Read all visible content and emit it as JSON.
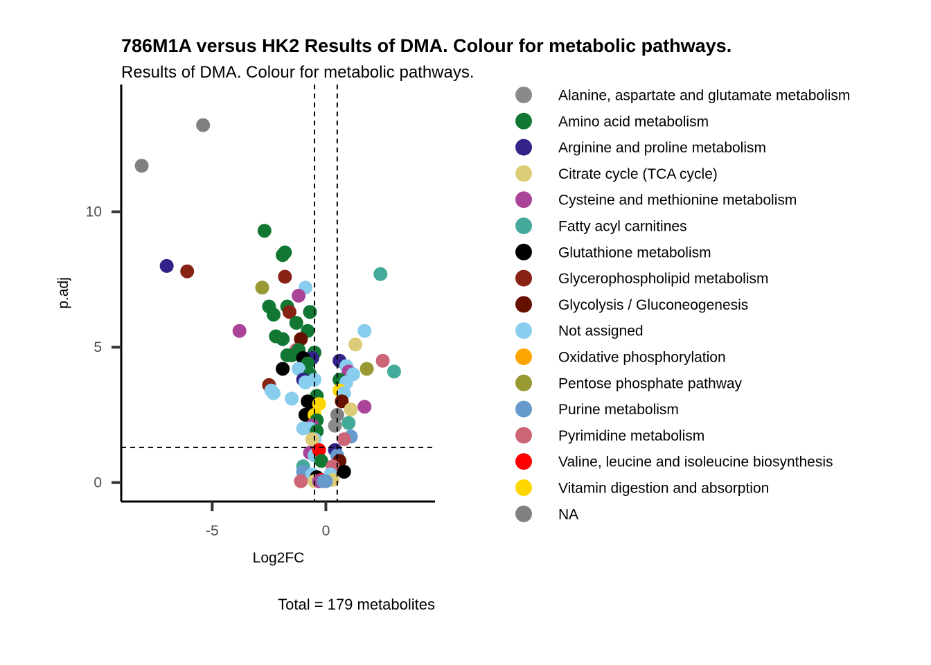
{
  "chart_data": {
    "type": "scatter",
    "title": "786M1A versus HK2 Results of DMA. Colour for metabolic pathways.",
    "subtitle": "Results of DMA. Colour for metabolic pathways.",
    "xlabel": "Log2FC",
    "ylabel": "p.adj",
    "caption": "Total = 179 metabolites",
    "xlim": [
      -9,
      4.8
    ],
    "ylim": [
      -0.7,
      14.7
    ],
    "x_ticks": [
      -5,
      0
    ],
    "x_tick_labels": [
      "-5",
      "0"
    ],
    "y_ticks": [
      0,
      5,
      10
    ],
    "y_tick_labels": [
      "0",
      "5",
      "10"
    ],
    "thresholds": {
      "vertical": [
        -0.5,
        0.5
      ],
      "horizontal": [
        1.3
      ]
    },
    "grid": false,
    "legend_position": "right",
    "legend": [
      {
        "name": "Alanine, aspartate and glutamate metabolism",
        "color": "#8a8a8a"
      },
      {
        "name": "Amino acid metabolism",
        "color": "#117733"
      },
      {
        "name": "Arginine and proline metabolism",
        "color": "#332288"
      },
      {
        "name": "Citrate cycle (TCA cycle)",
        "color": "#ddcc77"
      },
      {
        "name": "Cysteine and methionine metabolism",
        "color": "#aa4499"
      },
      {
        "name": "Fatty acyl carnitines",
        "color": "#44aa99"
      },
      {
        "name": "Glutathione metabolism",
        "color": "#000000"
      },
      {
        "name": "Glycerophospholipid metabolism",
        "color": "#882215"
      },
      {
        "name": "Glycolysis / Gluconeogenesis",
        "color": "#661100"
      },
      {
        "name": "Not assigned",
        "color": "#88ccee"
      },
      {
        "name": "Oxidative phosphorylation",
        "color": "#ffa500"
      },
      {
        "name": "Pentose phosphate pathway",
        "color": "#999933"
      },
      {
        "name": "Purine metabolism",
        "color": "#6699cc"
      },
      {
        "name": "Pyrimidine metabolism",
        "color": "#cc6677"
      },
      {
        "name": "Valine, leucine and isoleucine biosynthesis",
        "color": "#ff0000"
      },
      {
        "name": "Vitamin digestion and absorption",
        "color": "#ffd700"
      },
      {
        "name": "NA",
        "color": "#808080"
      }
    ],
    "points": [
      [
        -5.4,
        13.2,
        16
      ],
      [
        -8.1,
        11.7,
        16
      ],
      [
        -7.0,
        8.0,
        2
      ],
      [
        -6.1,
        7.8,
        7
      ],
      [
        -2.7,
        9.3,
        1
      ],
      [
        -1.8,
        8.5,
        1
      ],
      [
        -1.9,
        8.4,
        1
      ],
      [
        -1.8,
        7.6,
        7
      ],
      [
        -2.8,
        7.2,
        11
      ],
      [
        -0.9,
        7.2,
        9
      ],
      [
        -1.2,
        6.9,
        4
      ],
      [
        -2.5,
        6.5,
        1
      ],
      [
        -2.3,
        6.2,
        1
      ],
      [
        -1.7,
        6.5,
        1
      ],
      [
        -1.6,
        6.3,
        7
      ],
      [
        -0.7,
        6.3,
        1
      ],
      [
        -1.3,
        5.9,
        1
      ],
      [
        -0.8,
        5.6,
        1
      ],
      [
        -3.8,
        5.6,
        4
      ],
      [
        -2.2,
        5.4,
        1
      ],
      [
        -1.9,
        5.3,
        1
      ],
      [
        -1.1,
        5.3,
        8
      ],
      [
        -1.3,
        4.9,
        13
      ],
      [
        -1.2,
        4.9,
        1
      ],
      [
        -1.7,
        4.7,
        1
      ],
      [
        -1.5,
        4.7,
        1
      ],
      [
        -0.5,
        4.8,
        1
      ],
      [
        -0.6,
        4.6,
        2
      ],
      [
        -1.0,
        4.6,
        6
      ],
      [
        -0.8,
        4.4,
        1
      ],
      [
        -1.9,
        4.2,
        6
      ],
      [
        -1.2,
        4.2,
        9
      ],
      [
        -0.7,
        4.0,
        1
      ],
      [
        -1.0,
        3.8,
        2
      ],
      [
        -0.5,
        3.8,
        9
      ],
      [
        -0.9,
        3.7,
        9
      ],
      [
        -2.5,
        3.6,
        7
      ],
      [
        -2.4,
        3.4,
        9
      ],
      [
        -2.3,
        3.3,
        9
      ],
      [
        -1.5,
        3.1,
        9
      ],
      [
        -0.4,
        3.2,
        1
      ],
      [
        -0.8,
        3.0,
        6
      ],
      [
        -0.6,
        2.9,
        6
      ],
      [
        -0.3,
        2.9,
        15
      ],
      [
        -0.9,
        2.5,
        6
      ],
      [
        -0.5,
        2.5,
        15
      ],
      [
        -0.4,
        2.3,
        1
      ],
      [
        -0.6,
        2.1,
        4
      ],
      [
        -1.0,
        2.0,
        9
      ],
      [
        -0.7,
        2.0,
        9
      ],
      [
        -0.4,
        1.9,
        1
      ],
      [
        -0.5,
        1.6,
        9
      ],
      [
        -0.6,
        1.6,
        3
      ],
      [
        -0.7,
        1.1,
        4
      ],
      [
        -0.5,
        1.0,
        9
      ],
      [
        -0.3,
        1.2,
        14
      ],
      [
        -0.2,
        0.8,
        1
      ],
      [
        -1.0,
        0.6,
        5
      ],
      [
        -1.0,
        0.4,
        12
      ],
      [
        -0.6,
        0.3,
        9
      ],
      [
        -0.4,
        0.2,
        6
      ],
      [
        -0.2,
        0.1,
        14
      ],
      [
        -1.1,
        0.05,
        13
      ],
      [
        -0.5,
        0.05,
        3
      ],
      [
        -0.3,
        0.05,
        4
      ],
      [
        -0.1,
        0.05,
        12
      ],
      [
        0.6,
        4.5,
        2
      ],
      [
        0.9,
        4.3,
        9
      ],
      [
        1.0,
        4.1,
        4
      ],
      [
        1.2,
        4.0,
        9
      ],
      [
        1.3,
        5.1,
        3
      ],
      [
        1.7,
        5.6,
        9
      ],
      [
        1.8,
        4.2,
        11
      ],
      [
        2.5,
        4.5,
        13
      ],
      [
        2.4,
        7.7,
        5
      ],
      [
        3.0,
        4.1,
        5
      ],
      [
        0.6,
        3.8,
        1
      ],
      [
        0.9,
        3.7,
        9
      ],
      [
        0.6,
        3.4,
        15
      ],
      [
        0.8,
        3.3,
        9
      ],
      [
        0.7,
        3.0,
        8
      ],
      [
        1.1,
        2.7,
        3
      ],
      [
        1.7,
        2.8,
        4
      ],
      [
        0.5,
        2.5,
        16
      ],
      [
        0.4,
        2.1,
        0
      ],
      [
        1.0,
        2.2,
        5
      ],
      [
        1.1,
        1.7,
        12
      ],
      [
        0.8,
        1.6,
        13
      ],
      [
        0.4,
        1.2,
        2
      ],
      [
        0.5,
        1.0,
        12
      ],
      [
        0.6,
        0.8,
        8
      ],
      [
        0.3,
        0.6,
        13
      ],
      [
        0.8,
        0.4,
        6
      ],
      [
        0.2,
        0.3,
        9
      ],
      [
        0.3,
        0.1,
        3
      ],
      [
        0.0,
        0.05,
        12
      ]
    ]
  }
}
